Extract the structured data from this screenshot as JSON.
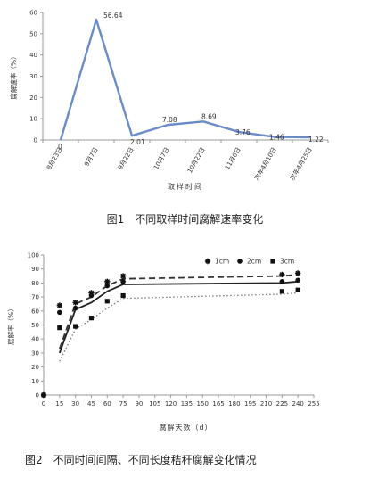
{
  "chart_data": [
    {
      "type": "line",
      "title": "",
      "xlabel": "取样时间",
      "ylabel": "腐解速率（%）",
      "ylim": [
        0,
        60
      ],
      "yticks": [
        0,
        10,
        20,
        30,
        40,
        50,
        60
      ],
      "grid": false,
      "categories": [
        "8月23日",
        "9月7日",
        "9月22日",
        "10月7日",
        "10月22日",
        "11月6日",
        "次年4月10日",
        "次年4月25日"
      ],
      "series": [
        {
          "values": [
            0,
            56.64,
            2.01,
            7.08,
            8.69,
            3.76,
            1.46,
            1.22
          ],
          "data_labels": [
            "0",
            "56.64",
            "2.01",
            "7.08",
            "8.69",
            "3.76",
            "1.46",
            "1.22"
          ],
          "color": "#6b8cc7"
        }
      ]
    },
    {
      "type": "scatter",
      "title": "",
      "xlabel": "腐解天数（d）",
      "ylabel": "腐解率（%）",
      "xlim": [
        0,
        255
      ],
      "ylim": [
        0,
        100
      ],
      "xticks": [
        0,
        15,
        30,
        45,
        60,
        75,
        90,
        105,
        120,
        135,
        150,
        165,
        180,
        195,
        210,
        225,
        240,
        255
      ],
      "yticks": [
        0,
        10,
        20,
        30,
        40,
        50,
        60,
        70,
        80,
        90,
        100
      ],
      "grid": false,
      "legend_position": "top-right",
      "series": [
        {
          "name": "1cm",
          "marker": "star",
          "line_style": "dashed",
          "x": [
            0,
            15,
            30,
            45,
            60,
            75,
            225,
            240
          ],
          "y": [
            0,
            64,
            66,
            73,
            81,
            85,
            86,
            87
          ],
          "fit": [
            [
              15,
              33
            ],
            [
              30,
              65
            ],
            [
              45,
              70
            ],
            [
              60,
              78
            ],
            [
              75,
              83
            ],
            [
              225,
              85
            ],
            [
              240,
              86
            ]
          ]
        },
        {
          "name": "2cm",
          "marker": "circle",
          "line_style": "solid",
          "x": [
            0,
            15,
            30,
            45,
            60,
            75,
            225,
            240
          ],
          "y": [
            0,
            59,
            62,
            71,
            78,
            81,
            81,
            82
          ],
          "fit": [
            [
              15,
              30
            ],
            [
              30,
              61
            ],
            [
              45,
              66
            ],
            [
              60,
              74
            ],
            [
              75,
              79
            ],
            [
              225,
              80
            ],
            [
              240,
              81
            ]
          ]
        },
        {
          "name": "3cm",
          "marker": "square",
          "line_style": "dotted",
          "x": [
            0,
            15,
            30,
            45,
            60,
            75,
            225,
            240
          ],
          "y": [
            0,
            48,
            49,
            55,
            67,
            71,
            74,
            75
          ],
          "fit": [
            [
              15,
              24
            ],
            [
              30,
              47
            ],
            [
              45,
              54
            ],
            [
              60,
              62
            ],
            [
              75,
              69
            ],
            [
              225,
              72
            ],
            [
              240,
              73
            ]
          ]
        }
      ]
    }
  ],
  "captions": {
    "fig1": "图1　不同取样时间腐解速率变化",
    "fig2": "图2　不同时间间隔、不同长度秸秆腐解变化情况"
  }
}
